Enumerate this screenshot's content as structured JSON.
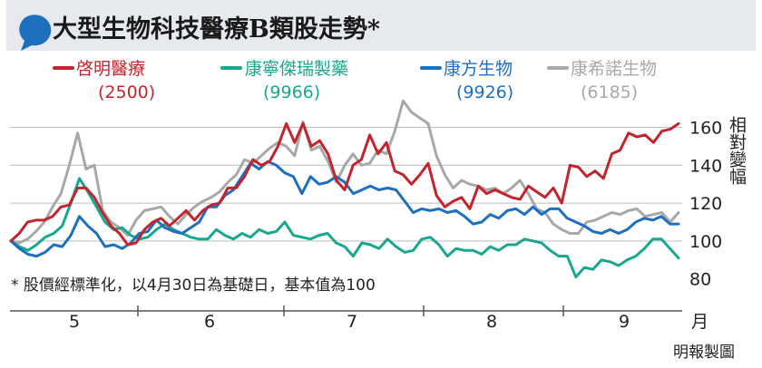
{
  "chart_data": {
    "type": "line",
    "title": "大型生物科技醫療B類股走勢",
    "title_mark": "*",
    "ylabel": "相對變幅",
    "xlabel": "月",
    "note": "* 股價經標準化，以4月30日為基礎日，基本值為100",
    "source": "明報製圖",
    "ylim": [
      76,
      166
    ],
    "yticks": [
      80,
      100,
      120,
      140,
      160
    ],
    "months": [
      "5",
      "6",
      "7",
      "8",
      "9"
    ],
    "colors": {
      "accent": "#1f6fbf"
    },
    "series": [
      {
        "name": "啓明醫療",
        "code": "(2500)",
        "color": "#c2252d",
        "values": [
          100,
          104,
          110,
          111,
          111,
          113,
          118,
          119,
          128,
          128,
          123,
          115,
          108,
          104,
          98,
          99,
          106,
          110,
          112,
          108,
          112,
          116,
          111,
          116,
          119,
          120,
          128,
          128,
          134,
          143,
          140,
          142,
          150,
          162,
          152,
          162,
          150,
          153,
          146,
          132,
          127,
          140,
          143,
          156,
          146,
          152,
          137,
          135,
          130,
          135,
          141,
          124,
          118,
          121,
          123,
          117,
          129,
          125,
          127,
          125,
          123,
          122,
          129,
          126,
          123,
          128,
          120,
          140,
          139,
          134,
          137,
          133,
          146,
          148,
          157,
          155,
          156,
          152,
          158,
          159,
          162
        ]
      },
      {
        "name": "康寧傑瑞製藥",
        "code": "(9966)",
        "color": "#1aa78f",
        "values": [
          100,
          97,
          95,
          98,
          102,
          104,
          108,
          120,
          133,
          126,
          118,
          110,
          106,
          107,
          103,
          101,
          102,
          106,
          109,
          106,
          104,
          102,
          101,
          101,
          106,
          103,
          101,
          104,
          102,
          106,
          104,
          105,
          110,
          103,
          102,
          101,
          103,
          104,
          99,
          97,
          92,
          99,
          98,
          96,
          101,
          97,
          94,
          95,
          101,
          102,
          98,
          92,
          96,
          95,
          95,
          93,
          97,
          95,
          98,
          98,
          101,
          100,
          99,
          95,
          92,
          92,
          81,
          86,
          85,
          90,
          89,
          87,
          90,
          92,
          96,
          101,
          101,
          96,
          91
        ]
      },
      {
        "name": "康方生物",
        "code": "(9926)",
        "color": "#1f6fbf",
        "values": [
          100,
          96,
          93,
          92,
          94,
          98,
          97,
          103,
          113,
          108,
          104,
          97,
          98,
          96,
          99,
          104,
          105,
          111,
          107,
          105,
          104,
          107,
          110,
          118,
          118,
          124,
          127,
          134,
          141,
          138,
          142,
          140,
          136,
          134,
          125,
          134,
          130,
          131,
          134,
          131,
          125,
          127,
          129,
          127,
          128,
          127,
          121,
          115,
          117,
          116,
          117,
          115,
          116,
          113,
          109,
          110,
          114,
          112,
          116,
          117,
          114,
          118,
          114,
          117,
          117,
          112,
          110,
          108,
          105,
          104,
          106,
          104,
          106,
          110,
          112,
          111,
          113,
          109,
          109
        ]
      },
      {
        "name": "康希諾生物",
        "code": "(6185)",
        "color": "#a8a8a8",
        "values": [
          100,
          99,
          101,
          105,
          110,
          118,
          125,
          140,
          157,
          138,
          140,
          116,
          110,
          107,
          103,
          111,
          116,
          117,
          118,
          113,
          109,
          114,
          118,
          121,
          123,
          126,
          131,
          135,
          143,
          141,
          145,
          149,
          152,
          150,
          145,
          163,
          148,
          150,
          142,
          131,
          140,
          146,
          140,
          141,
          148,
          146,
          158,
          174,
          168,
          165,
          162,
          145,
          135,
          128,
          132,
          130,
          129,
          127,
          128,
          125,
          128,
          132,
          125,
          117,
          115,
          109,
          106,
          104,
          104,
          110,
          111,
          113,
          115,
          114,
          116,
          117,
          113,
          114,
          115,
          110,
          115
        ]
      }
    ]
  }
}
